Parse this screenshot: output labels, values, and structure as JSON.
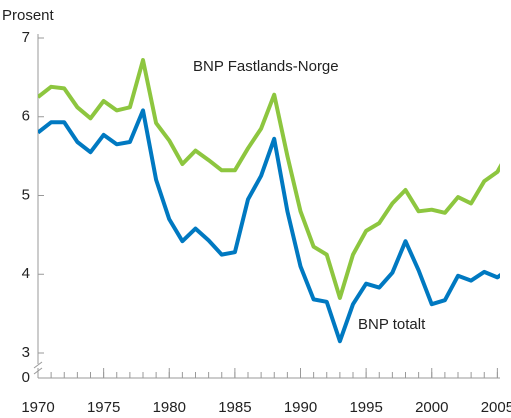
{
  "chart_data": {
    "type": "line",
    "y_label": "Prosent",
    "x": [
      1970,
      1971,
      1972,
      1973,
      1974,
      1975,
      1976,
      1977,
      1978,
      1979,
      1980,
      1981,
      1982,
      1983,
      1984,
      1985,
      1986,
      1987,
      1988,
      1989,
      1990,
      1991,
      1992,
      1993,
      1994,
      1995,
      1996,
      1997,
      1998,
      1999,
      2000,
      2001,
      2002,
      2003,
      2004,
      2005,
      2006
    ],
    "series": [
      {
        "name": "BNP Fastlands-Norge",
        "color": "#8dc63f",
        "values": [
          6.25,
          6.38,
          6.36,
          6.12,
          5.98,
          6.2,
          6.08,
          6.12,
          6.72,
          5.92,
          5.7,
          5.4,
          5.57,
          5.45,
          5.32,
          5.32,
          5.6,
          5.85,
          6.28,
          5.5,
          4.8,
          4.35,
          4.25,
          3.7,
          4.25,
          4.55,
          4.65,
          4.9,
          5.07,
          4.8,
          4.82,
          4.78,
          4.98,
          4.9,
          5.18,
          5.3,
          5.6
        ]
      },
      {
        "name": "BNP totalt",
        "color": "#0079c1",
        "values": [
          5.8,
          5.93,
          5.93,
          5.68,
          5.55,
          5.77,
          5.65,
          5.68,
          6.08,
          5.2,
          4.7,
          4.42,
          4.58,
          4.43,
          4.25,
          4.28,
          4.95,
          5.25,
          5.72,
          4.8,
          4.1,
          3.68,
          3.65,
          3.15,
          3.62,
          3.88,
          3.83,
          4.02,
          4.42,
          4.05,
          3.62,
          3.67,
          3.98,
          3.92,
          4.03,
          3.96,
          4.08
        ]
      }
    ],
    "xlim": [
      1970,
      2005.2
    ],
    "xticks": [
      1970,
      1975,
      1980,
      1985,
      1990,
      1995,
      2000,
      2005
    ],
    "ylim": [
      0,
      7
    ],
    "axis_break": [
      0,
      3
    ],
    "yticks": [
      0,
      3,
      4,
      5,
      6,
      7
    ]
  }
}
